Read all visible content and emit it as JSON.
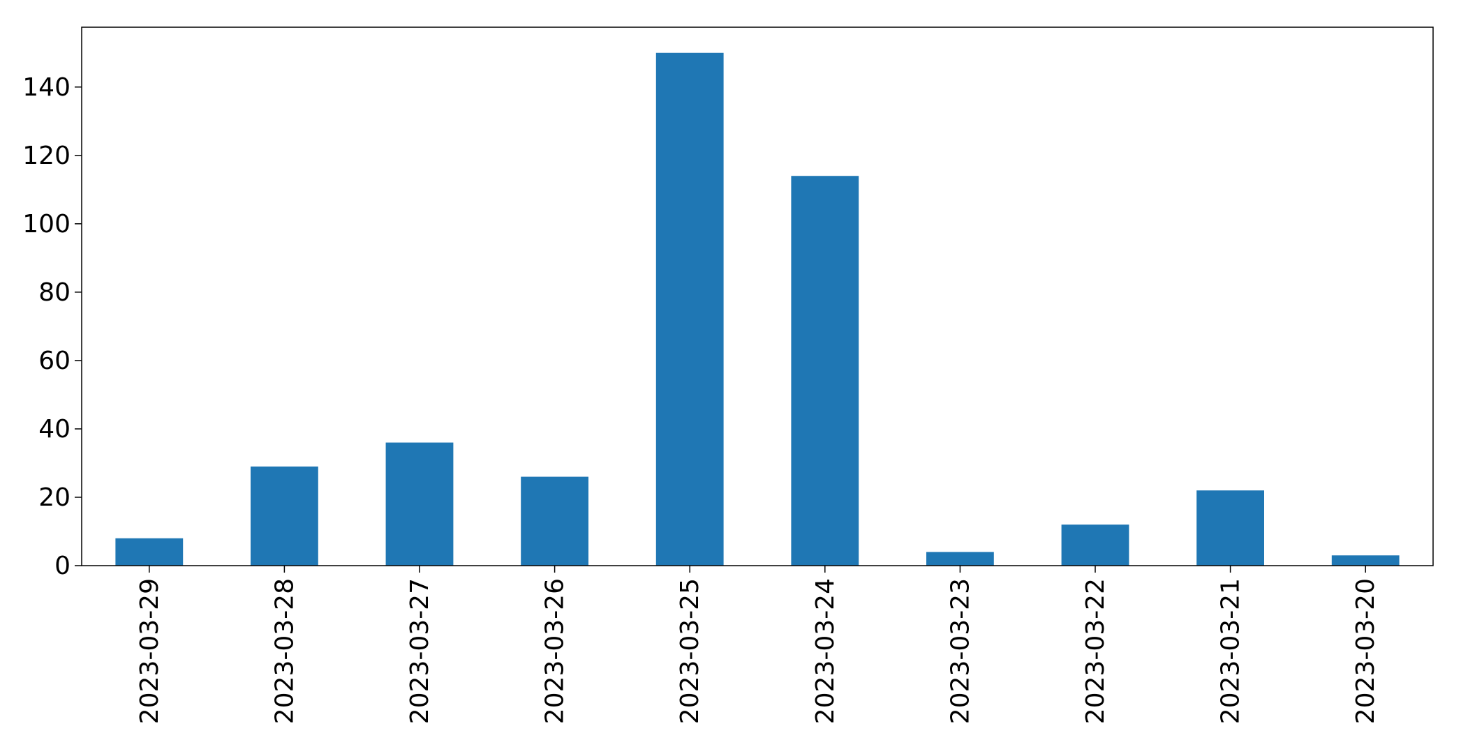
{
  "chart_data": {
    "type": "bar",
    "categories": [
      "2023-03-29",
      "2023-03-28",
      "2023-03-27",
      "2023-03-26",
      "2023-03-25",
      "2023-03-24",
      "2023-03-23",
      "2023-03-22",
      "2023-03-21",
      "2023-03-20"
    ],
    "values": [
      8,
      29,
      36,
      26,
      150,
      114,
      4,
      12,
      22,
      3
    ],
    "title": "",
    "xlabel": "",
    "ylabel": "",
    "ylim": [
      0,
      157.5
    ],
    "yticks": [
      0,
      20,
      40,
      60,
      80,
      100,
      120,
      140
    ],
    "xtick_rotation": "vertical",
    "grid": false,
    "legend": "none",
    "bar_color": "#1f77b4"
  }
}
